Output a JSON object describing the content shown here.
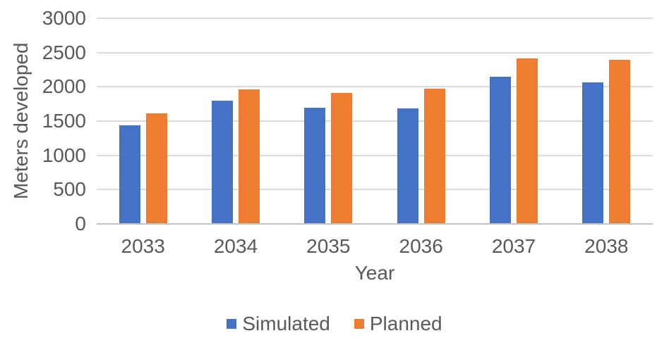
{
  "chart_data": {
    "type": "bar",
    "title": "",
    "categories": [
      "2033",
      "2034",
      "2035",
      "2036",
      "2037",
      "2038"
    ],
    "series": [
      {
        "name": "Simulated",
        "color": "#4472C4",
        "values": [
          1440,
          1800,
          1700,
          1680,
          2150,
          2070
        ]
      },
      {
        "name": "Planned",
        "color": "#ED7D31",
        "values": [
          1610,
          1960,
          1910,
          1970,
          2410,
          2390
        ]
      }
    ],
    "xlabel": "Year",
    "ylabel": "Meters developed",
    "ylim": [
      0,
      3000
    ],
    "yticks": [
      0,
      500,
      1000,
      1500,
      2000,
      2500,
      3000
    ],
    "grid": true,
    "legend_position": "bottom"
  },
  "style": {
    "text_color": "#595959",
    "gridline_color": "#DADADA",
    "baseline_color": "#C3C3C3",
    "background": "#FFFFFF"
  }
}
